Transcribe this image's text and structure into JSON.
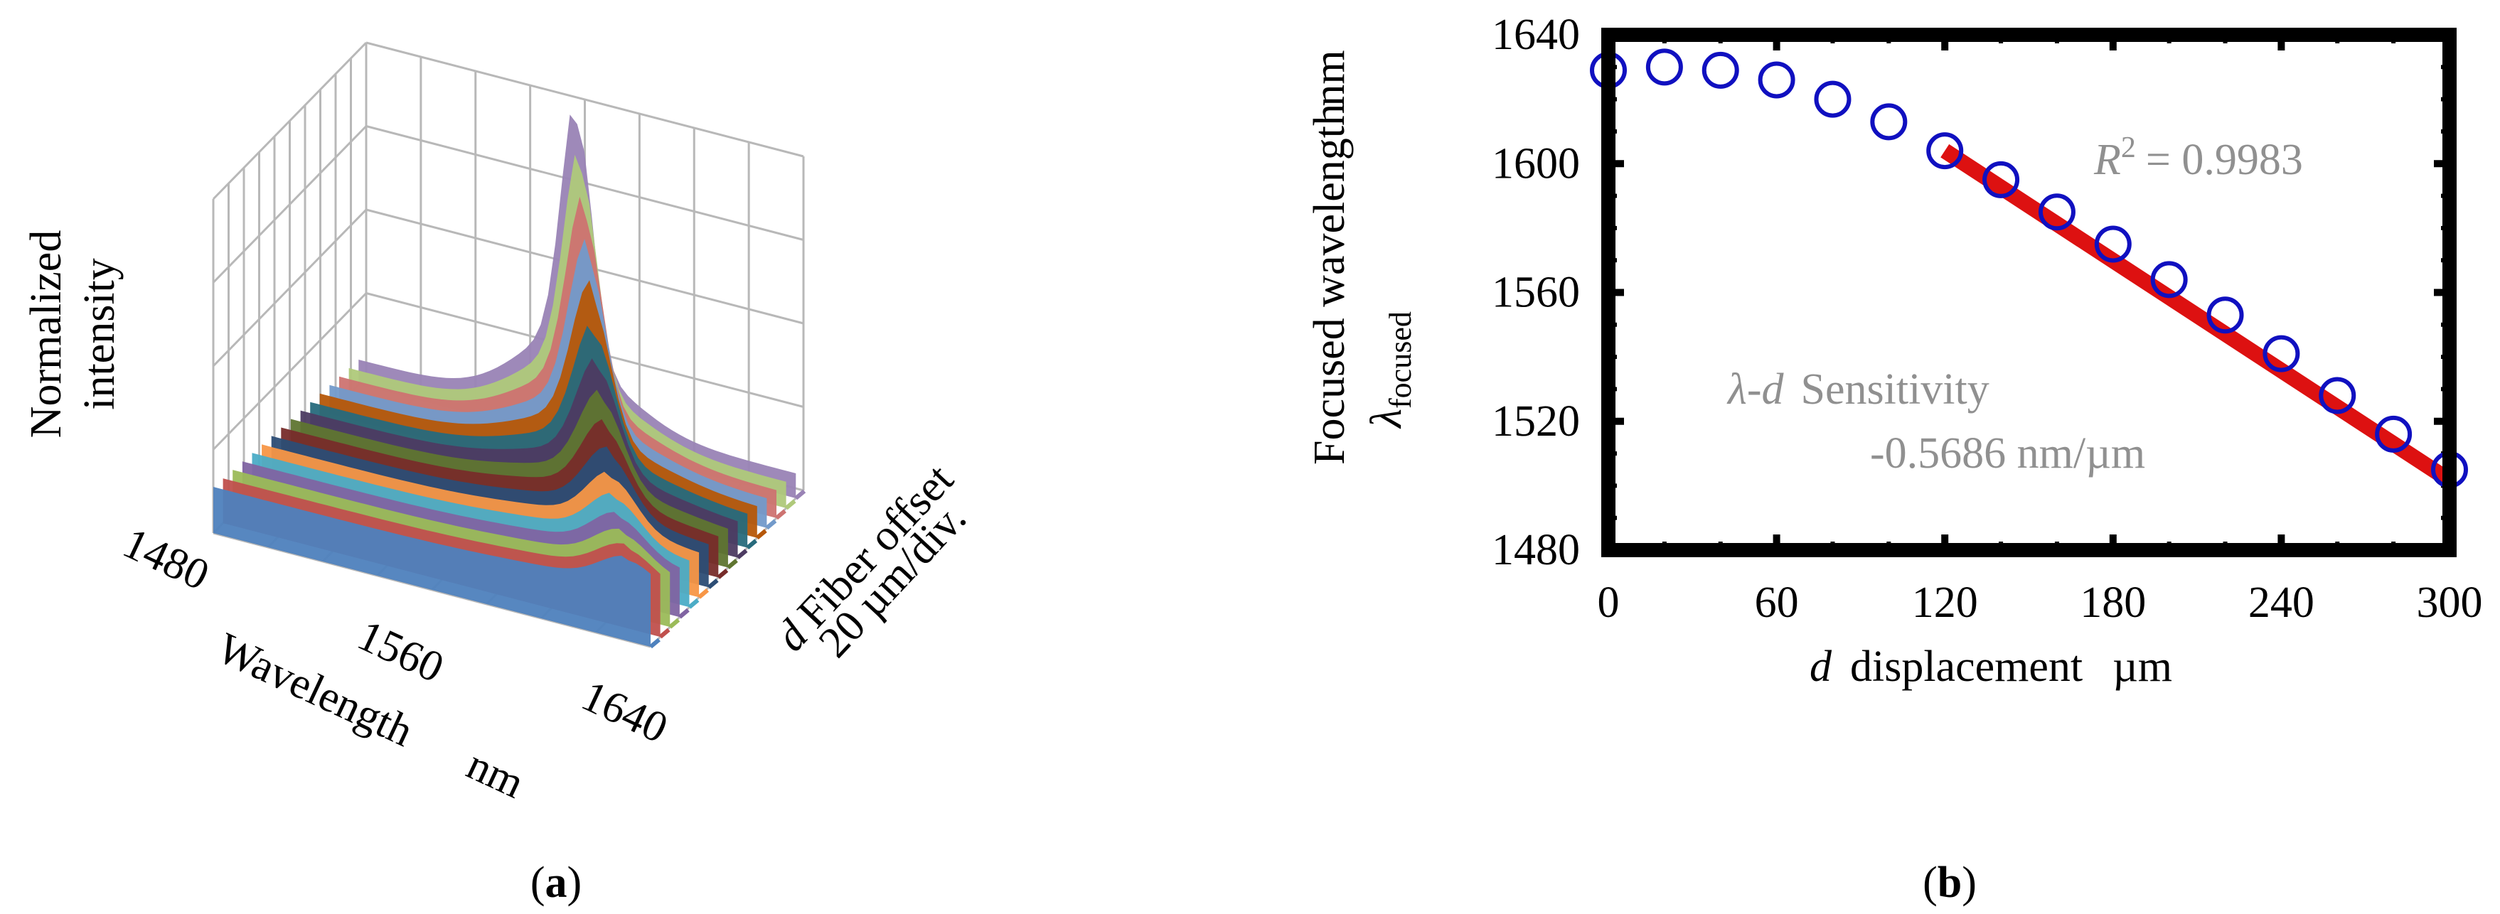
{
  "panel_a": {
    "caption_open": "(",
    "caption_letter": "a",
    "caption_close": ")",
    "ylabel_line1": "Normalized",
    "ylabel_line2": "intensity",
    "xlabel_word": "Wavelength",
    "xlabel_unit": "nm",
    "depth_label_var": "d",
    "depth_label_text": "Fiber offset",
    "depth_scale": "20 µm/div.",
    "x_ticks": [
      "1480",
      "1560",
      "1640"
    ]
  },
  "panel_b": {
    "caption_open": "(",
    "caption_letter": "b",
    "caption_close": ")",
    "ylabel_line1": "Focused wavelength",
    "ylabel_unit": "nm",
    "ylabel_symbol": "λ",
    "ylabel_subscript": "focused",
    "xlabel_var": "d",
    "xlabel_text": "displacement",
    "xlabel_unit": "µm",
    "r2_var": "R",
    "r2_sup": "2",
    "r2_value": "= 0.9983",
    "sens_label": "λ-d",
    "sens_word": "Sensitivity",
    "sens_value": "-0.5686 nm/µm"
  },
  "colors": {
    "marker": "#1010c0",
    "fit_line": "#dd1111",
    "annotation": "#909090",
    "frame": "#000000",
    "grid3d": "#b8b8b8"
  },
  "chart_data": [
    {
      "type": "area",
      "title": "",
      "xlabel": "Wavelength nm",
      "ylabel": "Normalized intensity",
      "zlabel": "d Fiber offset 20 µm/div.",
      "x_ticks": [
        1480,
        1560,
        1640
      ],
      "xlim": [
        1480,
        1640
      ],
      "series_count": 16,
      "series_colors": [
        "#4e81bd",
        "#c0504d",
        "#9bbb59",
        "#8064a2",
        "#4bacc6",
        "#f79646",
        "#2c4d75",
        "#772c2a",
        "#5f7530",
        "#4d3b62",
        "#276a7c",
        "#b65708",
        "#729aca",
        "#cd7371",
        "#afc97a",
        "#9983b5"
      ],
      "grid": true
    },
    {
      "type": "scatter",
      "title": "",
      "xlabel": "d displacement µm",
      "ylabel": "Focused wavelength λfocused nm",
      "xlim": [
        0,
        300
      ],
      "ylim": [
        1480,
        1640
      ],
      "x_ticks": [
        0,
        60,
        120,
        180,
        240,
        300
      ],
      "y_ticks": [
        1480,
        1520,
        1560,
        1600,
        1640
      ],
      "series": [
        {
          "x": [
            0,
            20,
            40,
            60,
            80,
            100,
            120,
            140,
            160,
            180,
            200,
            220,
            240,
            260,
            280,
            300
          ],
          "y": [
            1629,
            1630,
            1629,
            1626,
            1620,
            1613,
            1604,
            1595,
            1585,
            1575,
            1564,
            1553,
            1541,
            1528,
            1516,
            1505
          ]
        }
      ],
      "fit": {
        "x_range": [
          120,
          300
        ],
        "slope": -0.5686,
        "r2": 0.9983
      }
    }
  ]
}
